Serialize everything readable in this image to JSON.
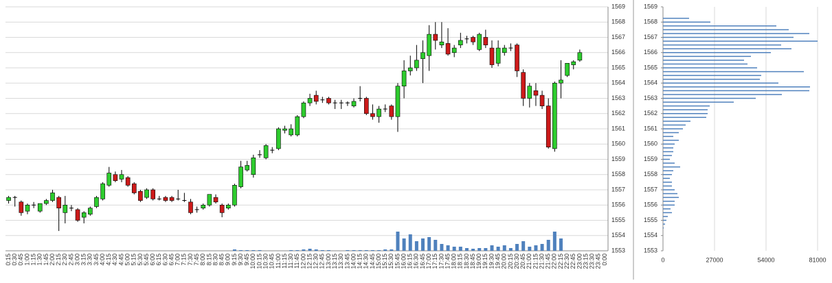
{
  "chart_data": [
    {
      "type": "candlestick",
      "categories": [
        "0:15",
        "0:30",
        "0:45",
        "1:00",
        "1:15",
        "1:30",
        "1:45",
        "2:00",
        "2:15",
        "2:30",
        "2:45",
        "3:00",
        "3:15",
        "3:30",
        "3:45",
        "4:00",
        "4:15",
        "4:30",
        "4:45",
        "5:00",
        "5:15",
        "5:30",
        "5:45",
        "6:00",
        "6:15",
        "6:30",
        "6:45",
        "7:00",
        "7:15",
        "7:30",
        "7:45",
        "8:00",
        "8:15",
        "8:30",
        "8:45",
        "9:00",
        "9:15",
        "9:30",
        "9:45",
        "10:00",
        "10:15",
        "10:30",
        "10:45",
        "11:00",
        "11:15",
        "11:30",
        "11:45",
        "12:00",
        "12:15",
        "12:30",
        "12:45",
        "13:00",
        "13:15",
        "13:30",
        "13:45",
        "14:00",
        "14:15",
        "14:30",
        "14:45",
        "15:00",
        "15:15",
        "15:30",
        "15:45",
        "16:00",
        "16:15",
        "16:30",
        "16:45",
        "17:00",
        "17:15",
        "17:30",
        "17:45",
        "18:00",
        "18:15",
        "18:30",
        "18:45",
        "19:00",
        "19:15",
        "19:30",
        "19:45",
        "20:00",
        "20:15",
        "20:30",
        "20:45",
        "21:00",
        "21:15",
        "21:30",
        "21:45",
        "22:00",
        "22:15",
        "22:30",
        "22:45",
        "23:00",
        "23:15",
        "23:30",
        "23:45",
        "0:00"
      ],
      "open": [
        1556.3,
        1556.5,
        1556.2,
        1555.6,
        1556.0,
        1555.6,
        1556.1,
        1556.3,
        1556.5,
        1555.5,
        1555.8,
        1555.7,
        1555.2,
        1555.4,
        1555.9,
        1556.4,
        1557.3,
        1558.0,
        1557.7,
        1557.8,
        1557.4,
        1556.9,
        1556.5,
        1557.0,
        1556.4,
        1556.5,
        1556.5,
        1556.4,
        1556.3,
        1556.2,
        1555.7,
        1555.8,
        1556.0,
        1556.5,
        1556.0,
        1555.8,
        1556.0,
        1557.2,
        1558.3,
        1558.0,
        1559.3,
        1559.1,
        1559.6,
        1559.7,
        1560.9,
        1560.6,
        1560.6,
        1561.8,
        1562.7,
        1563.2,
        1562.9,
        1563.0,
        1562.7,
        1562.7,
        1562.7,
        1562.5,
        1563.0,
        1563.0,
        1562.0,
        1561.8,
        1562.3,
        1562.5,
        1561.8,
        1563.8,
        1564.8,
        1565.0,
        1565.6,
        1565.8,
        1567.2,
        1566.5,
        1566.6,
        1566.0,
        1566.5,
        1566.9,
        1567.0,
        1566.2,
        1567.0,
        1566.3,
        1565.3,
        1566.0,
        1566.3,
        1566.5,
        1564.7,
        1563.0,
        1563.5,
        1563.2,
        1562.5,
        1559.7,
        1564.0,
        1564.5,
        1565.2,
        1565.5,
        null,
        null,
        null,
        null
      ],
      "high": [
        1556.6,
        1556.6,
        1556.3,
        1556.1,
        1556.2,
        1556.1,
        1556.4,
        1557.0,
        1556.6,
        1556.6,
        1556.0,
        1555.8,
        1555.6,
        1555.9,
        1556.6,
        1557.5,
        1558.5,
        1558.2,
        1558.3,
        1557.9,
        1557.5,
        1557.0,
        1557.1,
        1557.1,
        1556.6,
        1556.6,
        1556.6,
        1557.0,
        1556.8,
        1556.4,
        1555.9,
        1556.1,
        1556.7,
        1556.7,
        1556.1,
        1556.1,
        1557.4,
        1558.9,
        1558.9,
        1559.3,
        1559.6,
        1560.0,
        1559.8,
        1561.1,
        1561.2,
        1561.3,
        1561.9,
        1562.8,
        1563.3,
        1563.5,
        1563.1,
        1563.1,
        1562.9,
        1562.9,
        1562.8,
        1563.0,
        1563.8,
        1563.1,
        1562.6,
        1562.5,
        1562.6,
        1562.6,
        1564.0,
        1565.5,
        1565.8,
        1566.5,
        1566.8,
        1567.8,
        1568.0,
        1568.0,
        1567.6,
        1566.5,
        1567.3,
        1567.1,
        1567.1,
        1567.3,
        1567.5,
        1566.8,
        1566.8,
        1566.5,
        1566.6,
        1566.6,
        1564.9,
        1564.0,
        1564.0,
        1563.5,
        1563.0,
        1564.1,
        1565.5,
        1565.3,
        1565.5,
        1566.2,
        null,
        null,
        null,
        null
      ],
      "low": [
        1556.1,
        1555.9,
        1555.3,
        1555.4,
        1555.8,
        1555.5,
        1556.0,
        1556.2,
        1554.3,
        1554.8,
        1555.6,
        1554.9,
        1554.8,
        1555.3,
        1555.8,
        1556.3,
        1557.2,
        1557.5,
        1557.5,
        1557.2,
        1556.7,
        1556.2,
        1556.4,
        1556.3,
        1556.3,
        1556.2,
        1556.2,
        1556.3,
        1556.2,
        1555.4,
        1555.5,
        1555.7,
        1555.9,
        1556.1,
        1555.2,
        1555.7,
        1555.9,
        1557.1,
        1558.2,
        1557.8,
        1559.1,
        1559.0,
        1559.4,
        1559.6,
        1560.7,
        1560.5,
        1560.5,
        1561.7,
        1562.5,
        1562.6,
        1562.7,
        1562.6,
        1562.3,
        1562.3,
        1562.5,
        1562.4,
        1562.8,
        1561.9,
        1561.6,
        1561.4,
        1562.1,
        1561.6,
        1560.8,
        1563.0,
        1564.5,
        1564.8,
        1564.0,
        1564.8,
        1566.2,
        1566.3,
        1565.8,
        1565.7,
        1566.3,
        1566.6,
        1566.5,
        1566.1,
        1566.3,
        1565.0,
        1565.1,
        1565.8,
        1566.1,
        1564.4,
        1562.5,
        1562.4,
        1562.5,
        1562.3,
        1559.7,
        1559.5,
        1563.0,
        1564.4,
        1564.9,
        1565.4,
        null,
        null,
        null,
        null
      ],
      "close": [
        1556.5,
        1556.5,
        1555.5,
        1556.0,
        1556.0,
        1556.1,
        1556.3,
        1556.8,
        1555.8,
        1556.0,
        1555.8,
        1555.0,
        1555.5,
        1555.8,
        1556.5,
        1557.4,
        1558.1,
        1557.6,
        1558.0,
        1557.3,
        1556.8,
        1556.3,
        1557.0,
        1556.4,
        1556.4,
        1556.3,
        1556.3,
        1556.4,
        1556.3,
        1555.5,
        1555.7,
        1556.0,
        1556.7,
        1556.2,
        1555.5,
        1556.0,
        1557.3,
        1558.5,
        1558.6,
        1559.1,
        1559.3,
        1559.9,
        1559.6,
        1561.0,
        1561.0,
        1561.0,
        1561.8,
        1562.7,
        1563.0,
        1562.8,
        1562.9,
        1562.7,
        1562.7,
        1562.7,
        1562.7,
        1562.8,
        1563.0,
        1562.0,
        1561.8,
        1562.3,
        1562.3,
        1561.8,
        1563.8,
        1564.8,
        1565.0,
        1565.5,
        1566.0,
        1567.2,
        1566.8,
        1566.7,
        1565.9,
        1566.3,
        1566.8,
        1566.9,
        1566.7,
        1567.2,
        1566.5,
        1565.2,
        1566.3,
        1566.3,
        1566.3,
        1564.8,
        1563.0,
        1563.8,
        1563.2,
        1562.5,
        1559.8,
        1564.0,
        1564.2,
        1565.3,
        1565.4,
        1566.0,
        null,
        null,
        null,
        null
      ],
      "volume": [
        0,
        0,
        0,
        0,
        0,
        0,
        0,
        0,
        0,
        0,
        0,
        0,
        0,
        0,
        0,
        0,
        0,
        0,
        0,
        0,
        0,
        0,
        0,
        0,
        0,
        0,
        0,
        0,
        0,
        0,
        0,
        0,
        0,
        0,
        0,
        0,
        2,
        1,
        1,
        1,
        1,
        0,
        0,
        0,
        0,
        1,
        1,
        2,
        3,
        2,
        1,
        1,
        0,
        0,
        1,
        1,
        1,
        1,
        1,
        1,
        2,
        2,
        28,
        18,
        24,
        14,
        18,
        20,
        16,
        10,
        8,
        6,
        6,
        4,
        3,
        4,
        4,
        8,
        6,
        8,
        4,
        10,
        14,
        6,
        8,
        10,
        16,
        28,
        18,
        0,
        0,
        0,
        null,
        null,
        null,
        null
      ],
      "up_color": "#2ecc2e",
      "down_color": "#cc1a1a",
      "volume_color": "#4f81bd",
      "ylim": [
        1553,
        1569
      ],
      "yticks": [
        1553,
        1554,
        1555,
        1556,
        1557,
        1558,
        1559,
        1560,
        1561,
        1562,
        1563,
        1564,
        1565,
        1566,
        1567,
        1568,
        1569
      ],
      "grid": true
    },
    {
      "type": "bar",
      "orientation": "horizontal",
      "color": "#4f81bd",
      "y": [
        1568.25,
        1568,
        1567.75,
        1567.5,
        1567.25,
        1567,
        1566.75,
        1566.5,
        1566.25,
        1566,
        1565.75,
        1565.5,
        1565.25,
        1565,
        1564.75,
        1564.5,
        1564.25,
        1564,
        1563.75,
        1563.5,
        1563.25,
        1563,
        1562.75,
        1562.5,
        1562.25,
        1562,
        1561.75,
        1561.5,
        1561.25,
        1561,
        1560.75,
        1560.5,
        1560.25,
        1560,
        1559.75,
        1559.5,
        1559.25,
        1559,
        1558.75,
        1558.5,
        1558.25,
        1558,
        1557.75,
        1557.5,
        1557.25,
        1557,
        1556.75,
        1556.5,
        1556.25,
        1556,
        1555.75,
        1555.5,
        1555.25,
        1555,
        1554.75,
        1554.5
      ],
      "values": [
        13680,
        24840,
        59400,
        65880,
        76680,
        68400,
        81000,
        61920,
        67320,
        56520,
        46080,
        42480,
        44280,
        49320,
        73800,
        51480,
        50760,
        60480,
        77040,
        76680,
        62280,
        48600,
        37080,
        24480,
        23400,
        23400,
        22680,
        14400,
        11880,
        10440,
        8280,
        5400,
        8280,
        6120,
        5400,
        5400,
        4680,
        3600,
        6120,
        9000,
        5400,
        4680,
        3600,
        4680,
        4680,
        6120,
        7560,
        8280,
        6120,
        6120,
        3960,
        4680,
        2520,
        1800,
        1080,
        360
      ],
      "xlim": [
        0,
        81000
      ],
      "xticks": [
        0,
        27000,
        54000,
        81000
      ],
      "ylim": [
        1553,
        1569
      ],
      "yticks": [
        1553,
        1554,
        1555,
        1556,
        1557,
        1558,
        1559,
        1560,
        1561,
        1562,
        1563,
        1564,
        1565,
        1566,
        1567,
        1568,
        1569
      ],
      "grid": true
    }
  ]
}
